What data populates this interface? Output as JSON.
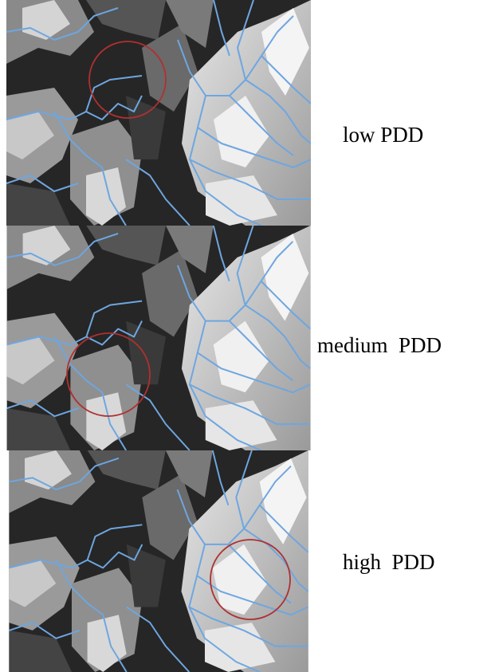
{
  "panels": [
    {
      "label": "low PDD"
    },
    {
      "label": "medium  PDD"
    },
    {
      "label": "high  PDD"
    }
  ]
}
